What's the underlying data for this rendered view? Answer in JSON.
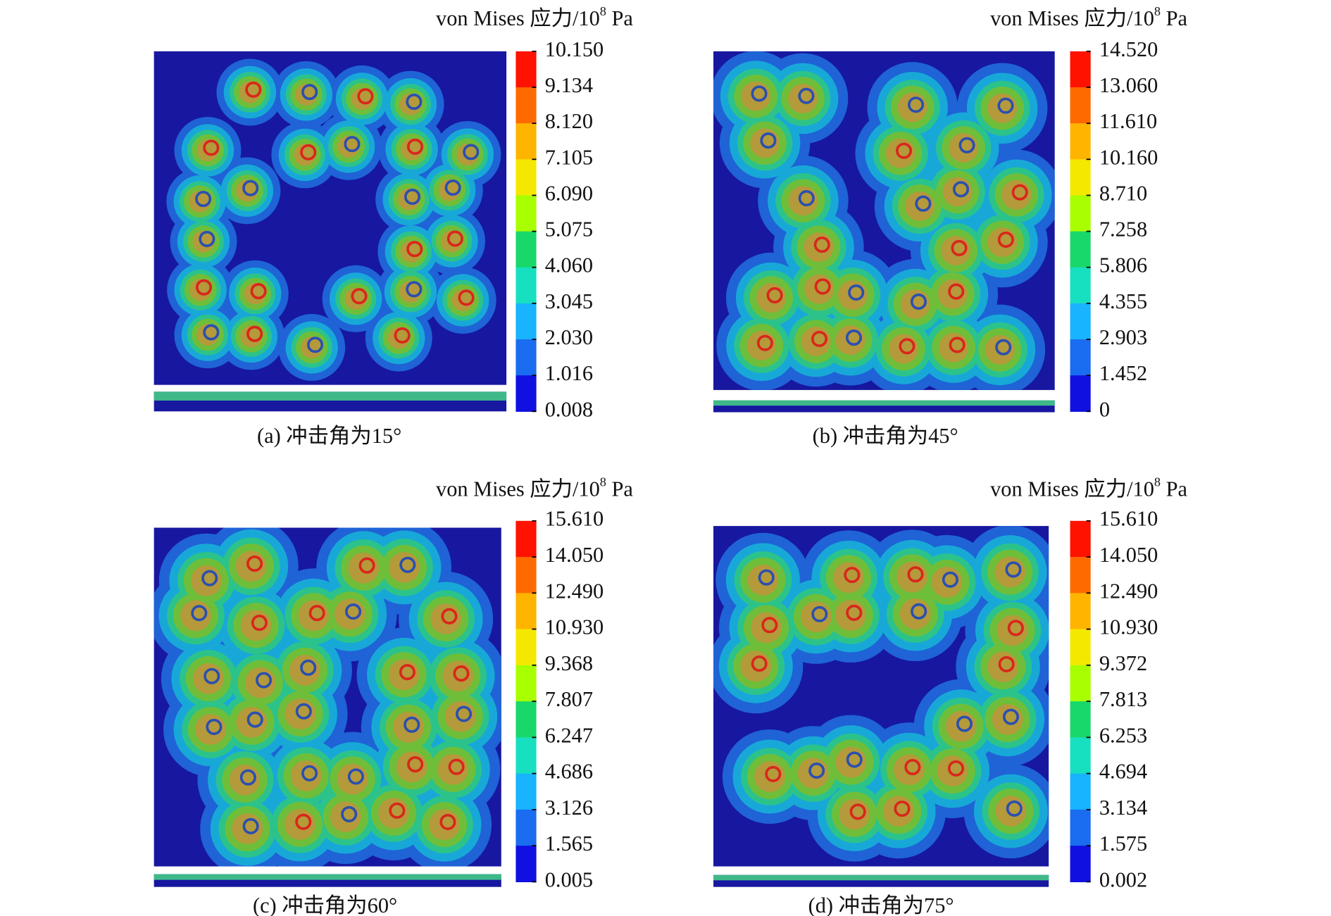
{
  "panels": [
    {
      "title": {
        "text": "von Mises 应力/10",
        "exponent": "8",
        "unit": " Pa"
      },
      "colorbar_labels": [
        "10.150",
        "9.134",
        "8.120",
        "7.105",
        "6.090",
        "5.075",
        "4.060",
        "3.045",
        "2.030",
        "1.016",
        "0.008"
      ],
      "caption": "(a) 冲击角为15°"
    },
    {
      "title": {
        "text": "von Mises 应力/10",
        "exponent": "8",
        "unit": " Pa"
      },
      "colorbar_labels": [
        "14.520",
        "13.060",
        "11.610",
        "10.160",
        "8.710",
        "7.258",
        "5.806",
        "4.355",
        "2.903",
        "1.452",
        "0"
      ],
      "caption": "(b) 冲击角为45°"
    },
    {
      "title": {
        "text": "von Mises 应力/10",
        "exponent": "8",
        "unit": " Pa"
      },
      "colorbar_labels": [
        "15.610",
        "14.050",
        "12.490",
        "10.930",
        "9.368",
        "7.807",
        "6.247",
        "4.686",
        "3.126",
        "1.565",
        "0.005"
      ],
      "caption": "(c) 冲击角为60°"
    },
    {
      "title": {
        "text": "von Mises 应力/10",
        "exponent": "8",
        "unit": " Pa"
      },
      "colorbar_labels": [
        "15.610",
        "14.050",
        "12.490",
        "10.930",
        "9.372",
        "7.813",
        "6.253",
        "4.694",
        "3.134",
        "1.575",
        "0.002"
      ],
      "caption": "(d) 冲击角为75°"
    }
  ]
}
